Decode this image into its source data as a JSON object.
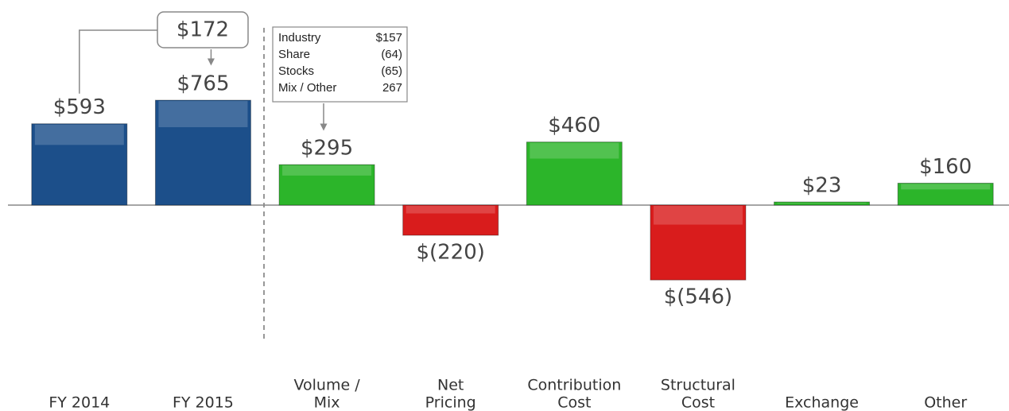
{
  "chart_data": {
    "type": "bar",
    "categories": [
      [
        "FY 2014"
      ],
      [
        "FY 2015"
      ],
      [
        "Volume /",
        "Mix"
      ],
      [
        "Net",
        "Pricing"
      ],
      [
        "Contribution",
        "Cost"
      ],
      [
        "Structural",
        "Cost"
      ],
      [
        "Exchange"
      ],
      [
        "Other"
      ]
    ],
    "values": [
      593,
      765,
      295,
      -220,
      460,
      -546,
      23,
      160
    ],
    "value_labels": [
      "$593",
      "$765",
      "$295",
      "$(220)",
      "$460",
      "$(546)",
      "$23",
      "$160"
    ],
    "colors": [
      "#1c4f8a",
      "#1c4f8a",
      "#2cb52a",
      "#d91c1c",
      "#2cb52a",
      "#d91c1c",
      "#2cb52a",
      "#2cb52a"
    ],
    "ylim": [
      -800,
      800
    ],
    "callout": {
      "value": 172,
      "label": "$172"
    },
    "breakdown": [
      {
        "name": "Industry",
        "value": 157,
        "label": "$157"
      },
      {
        "name": "Share",
        "value": -64,
        "label": "(64)"
      },
      {
        "name": "Stocks",
        "value": -65,
        "label": "(65)"
      },
      {
        "name": "Mix / Other",
        "value": 267,
        "label": "267"
      }
    ]
  }
}
